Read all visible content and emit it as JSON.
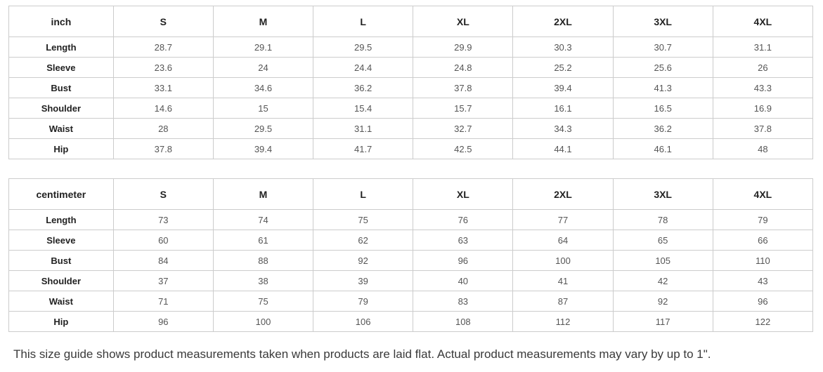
{
  "size_guide": {
    "tables": [
      {
        "unit_label": "inch",
        "sizes": [
          "S",
          "M",
          "L",
          "XL",
          "2XL",
          "3XL",
          "4XL"
        ],
        "rows": [
          {
            "label": "Length",
            "values": [
              "28.7",
              "29.1",
              "29.5",
              "29.9",
              "30.3",
              "30.7",
              "31.1"
            ]
          },
          {
            "label": "Sleeve",
            "values": [
              "23.6",
              "24",
              "24.4",
              "24.8",
              "25.2",
              "25.6",
              "26"
            ]
          },
          {
            "label": "Bust",
            "values": [
              "33.1",
              "34.6",
              "36.2",
              "37.8",
              "39.4",
              "41.3",
              "43.3"
            ]
          },
          {
            "label": "Shoulder",
            "values": [
              "14.6",
              "15",
              "15.4",
              "15.7",
              "16.1",
              "16.5",
              "16.9"
            ]
          },
          {
            "label": "Waist",
            "values": [
              "28",
              "29.5",
              "31.1",
              "32.7",
              "34.3",
              "36.2",
              "37.8"
            ]
          },
          {
            "label": "Hip",
            "values": [
              "37.8",
              "39.4",
              "41.7",
              "42.5",
              "44.1",
              "46.1",
              "48"
            ]
          }
        ]
      },
      {
        "unit_label": "centimeter",
        "sizes": [
          "S",
          "M",
          "L",
          "XL",
          "2XL",
          "3XL",
          "4XL"
        ],
        "rows": [
          {
            "label": "Length",
            "values": [
              "73",
              "74",
              "75",
              "76",
              "77",
              "78",
              "79"
            ]
          },
          {
            "label": "Sleeve",
            "values": [
              "60",
              "61",
              "62",
              "63",
              "64",
              "65",
              "66"
            ]
          },
          {
            "label": "Bust",
            "values": [
              "84",
              "88",
              "92",
              "96",
              "100",
              "105",
              "110"
            ]
          },
          {
            "label": "Shoulder",
            "values": [
              "37",
              "38",
              "39",
              "40",
              "41",
              "42",
              "43"
            ]
          },
          {
            "label": "Waist",
            "values": [
              "71",
              "75",
              "79",
              "83",
              "87",
              "92",
              "96"
            ]
          },
          {
            "label": "Hip",
            "values": [
              "96",
              "100",
              "106",
              "108",
              "112",
              "117",
              "122"
            ]
          }
        ]
      }
    ],
    "note": "This size guide shows product measurements taken when products are laid flat. Actual product measurements may vary by up to 1\"."
  },
  "colors": {
    "border": "#cccccc",
    "header_text": "#222222",
    "cell_text": "#555555",
    "note_text": "#3a3a3a",
    "background": "#ffffff"
  }
}
